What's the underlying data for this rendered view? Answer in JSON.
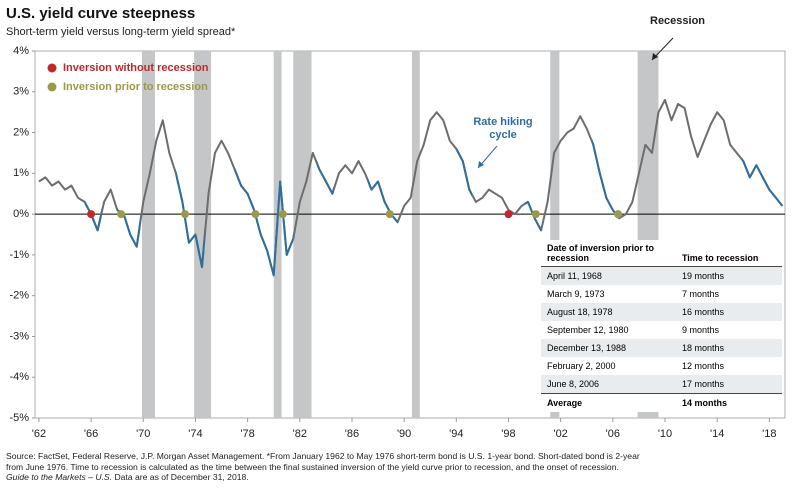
{
  "chart_data": {
    "type": "line",
    "title": "U.S. yield curve steepness",
    "subtitle": "Short-term yield versus long-term yield spread*",
    "x": [
      1962,
      1962.5,
      1963,
      1963.5,
      1964,
      1964.5,
      1965,
      1965.5,
      1966,
      1966.5,
      1967,
      1967.5,
      1968,
      1968.5,
      1969,
      1969.5,
      1970,
      1970.5,
      1971,
      1971.5,
      1972,
      1972.5,
      1973,
      1973.5,
      1974,
      1974.5,
      1975,
      1975.5,
      1976,
      1976.5,
      1977,
      1977.5,
      1978,
      1978.5,
      1979,
      1979.5,
      1980,
      1980.5,
      1981,
      1981.5,
      1982,
      1982.5,
      1983,
      1983.5,
      1984,
      1984.5,
      1985,
      1985.5,
      1986,
      1986.5,
      1987,
      1987.5,
      1988,
      1988.5,
      1989,
      1989.5,
      1990,
      1990.5,
      1991,
      1991.5,
      1992,
      1992.5,
      1993,
      1993.5,
      1994,
      1994.5,
      1995,
      1995.5,
      1996,
      1996.5,
      1997,
      1997.5,
      1998,
      1998.5,
      1999,
      1999.5,
      2000,
      2000.5,
      2001,
      2001.5,
      2002,
      2002.5,
      2003,
      2003.5,
      2004,
      2004.5,
      2005,
      2005.5,
      2006,
      2006.5,
      2007,
      2007.5,
      2008,
      2008.5,
      2009,
      2009.5,
      2010,
      2010.5,
      2011,
      2011.5,
      2012,
      2012.5,
      2013,
      2013.5,
      2014,
      2014.5,
      2015,
      2015.5,
      2016,
      2016.5,
      2017,
      2017.5,
      2018,
      2018.5,
      2019
    ],
    "series": [
      {
        "name": "Yield spread",
        "color": "#6d6d6d",
        "highlight_color": "#2f6f9f",
        "values": [
          0.8,
          0.9,
          0.7,
          0.8,
          0.6,
          0.7,
          0.4,
          0.3,
          0.0,
          -0.4,
          0.3,
          0.6,
          0.1,
          0.0,
          -0.5,
          -0.8,
          0.3,
          1.0,
          1.8,
          2.3,
          1.5,
          1.0,
          0.3,
          -0.7,
          -0.5,
          -1.3,
          0.5,
          1.5,
          1.8,
          1.5,
          1.1,
          0.7,
          0.5,
          0.1,
          -0.5,
          -0.9,
          -1.5,
          0.8,
          -1.0,
          -0.6,
          0.3,
          0.8,
          1.5,
          1.1,
          0.8,
          0.5,
          1.0,
          1.2,
          1.0,
          1.3,
          1.0,
          0.6,
          0.8,
          0.3,
          0.0,
          -0.2,
          0.2,
          0.4,
          1.3,
          1.7,
          2.3,
          2.5,
          2.3,
          1.8,
          1.6,
          1.3,
          0.6,
          0.3,
          0.4,
          0.6,
          0.5,
          0.4,
          0.1,
          0.0,
          0.2,
          0.3,
          -0.1,
          -0.4,
          0.3,
          1.5,
          1.8,
          2.0,
          2.1,
          2.4,
          2.1,
          1.7,
          1.0,
          0.4,
          0.1,
          -0.1,
          0.0,
          0.3,
          1.0,
          1.7,
          1.5,
          2.5,
          2.8,
          2.3,
          2.7,
          2.6,
          1.9,
          1.4,
          1.8,
          2.2,
          2.5,
          2.3,
          1.7,
          1.5,
          1.3,
          0.9,
          1.2,
          0.9,
          0.6,
          0.4,
          0.2
        ]
      }
    ],
    "hiking_periods": [
      [
        1965.5,
        1966.8
      ],
      [
        1968,
        1969.8
      ],
      [
        1972.5,
        1974.7
      ],
      [
        1977,
        1981.5
      ],
      [
        1983.3,
        1984.6
      ],
      [
        1987.2,
        1989.5
      ],
      [
        1994,
        1995.2
      ],
      [
        1999.3,
        2000.5
      ],
      [
        2004.4,
        2006.6
      ],
      [
        2015.9,
        2019
      ]
    ],
    "recessions": [
      [
        1969.9,
        1970.9
      ],
      [
        1973.9,
        1975.2
      ],
      [
        1980,
        1980.6
      ],
      [
        1981.5,
        1982.9
      ],
      [
        1990.6,
        1991.2
      ],
      [
        2001.2,
        2001.9
      ],
      [
        2007.9,
        2009.5
      ]
    ],
    "recession_color": "#c4c6c8",
    "markers": [
      {
        "name": "Inversion without recession",
        "color": "#c0282a",
        "x": [
          1966,
          1998
        ],
        "values": [
          0,
          0
        ]
      },
      {
        "name": "Inversion prior to recession",
        "color": "#9a9a4a",
        "x": [
          1968.3,
          1973.2,
          1978.6,
          1980.7,
          1988.9,
          2000.1,
          2006.4
        ],
        "values": [
          0,
          0,
          0,
          0,
          0,
          0,
          0
        ]
      }
    ],
    "annotations": {
      "recession": "Recession",
      "hiking": "Rate hiking cycle"
    },
    "xlim": [
      1961.7,
      2019.2
    ],
    "xticks": [
      {
        "value": 1962,
        "label": "'62"
      },
      {
        "value": 1966,
        "label": "'66"
      },
      {
        "value": 1970,
        "label": "'70"
      },
      {
        "value": 1974,
        "label": "'74"
      },
      {
        "value": 1978,
        "label": "'78"
      },
      {
        "value": 1982,
        "label": "'82"
      },
      {
        "value": 1986,
        "label": "'86"
      },
      {
        "value": 1990,
        "label": "'90"
      },
      {
        "value": 1994,
        "label": "'94"
      },
      {
        "value": 1998,
        "label": "'98"
      },
      {
        "value": 2002,
        "label": "'02"
      },
      {
        "value": 2006,
        "label": "'06"
      },
      {
        "value": 2010,
        "label": "'10"
      },
      {
        "value": 2014,
        "label": "'14"
      },
      {
        "value": 2018,
        "label": "'18"
      }
    ],
    "ylim": [
      -5,
      4
    ],
    "yticks": [
      {
        "value": 4,
        "label": "4%"
      },
      {
        "value": 3,
        "label": "3%"
      },
      {
        "value": 2,
        "label": "2%"
      },
      {
        "value": 1,
        "label": "1%"
      },
      {
        "value": 0,
        "label": "0%"
      },
      {
        "value": -1,
        "label": "-1%"
      },
      {
        "value": -2,
        "label": "-2%"
      },
      {
        "value": -3,
        "label": "-3%"
      },
      {
        "value": -4,
        "label": "-4%"
      },
      {
        "value": -5,
        "label": "-5%"
      }
    ]
  },
  "table": {
    "headers": [
      "Date of inversion prior to recession",
      "Time to recession"
    ],
    "rows": [
      [
        "April 11, 1968",
        "19 months"
      ],
      [
        "March 9, 1973",
        "7 months"
      ],
      [
        "August 18, 1978",
        "16 months"
      ],
      [
        "September 12, 1980",
        "9 months"
      ],
      [
        "December 13, 1988",
        "18 months"
      ],
      [
        "February 2, 2000",
        "12 months"
      ],
      [
        "June 8, 2006",
        "17 months"
      ]
    ],
    "footer": [
      "Average",
      "14 months"
    ]
  },
  "footnote": {
    "source": "Source: FactSet, Federal Reserve, J.P. Morgan Asset Management. *From January 1962 to May 1976 short-term bond is U.S. 1-year bond. Short-dated bond is 2-year from June 1976. Time to recession is calculated as the time between the final sustained inversion of the yield curve prior to recession, and the onset of recession.",
    "guide": "Guide to the Markets – U.S.",
    "asof": "Data are as of December 31, 2018."
  }
}
